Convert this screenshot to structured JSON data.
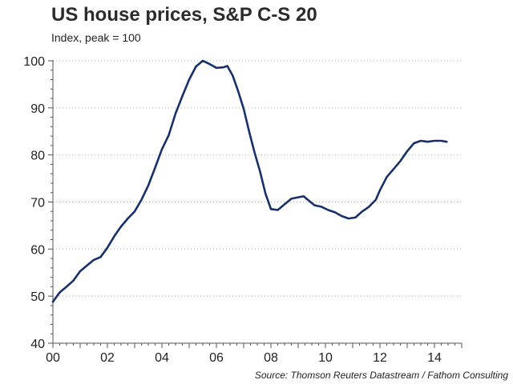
{
  "chart_data": {
    "type": "line",
    "title": "US house prices, S&P C-S 20",
    "subtitle": "Index, peak = 100",
    "source": "Source: Thomson Reuters Datastream / Fathom Consulting",
    "xlim": [
      2000,
      2015
    ],
    "ylim": [
      40,
      100
    ],
    "x_ticks": [
      {
        "value": 2000,
        "label": "00"
      },
      {
        "value": 2002,
        "label": "02"
      },
      {
        "value": 2004,
        "label": "04"
      },
      {
        "value": 2006,
        "label": "06"
      },
      {
        "value": 2008,
        "label": "08"
      },
      {
        "value": 2010,
        "label": "10"
      },
      {
        "value": 2012,
        "label": "12"
      },
      {
        "value": 2014,
        "label": "14"
      }
    ],
    "y_ticks": [
      100,
      90,
      80,
      70,
      60,
      50,
      40
    ],
    "grid": "horizontal",
    "legend": "none",
    "line_color": "#17306b",
    "series": [
      {
        "x": [
          2000.0,
          2000.25,
          2000.5,
          2000.75,
          2001.0,
          2001.25,
          2001.5,
          2001.75,
          2002.0,
          2002.25,
          2002.5,
          2002.75,
          2003.0,
          2003.25,
          2003.5,
          2003.75,
          2004.0,
          2004.25,
          2004.5,
          2004.75,
          2005.0,
          2005.25,
          2005.5,
          2005.75,
          2006.0,
          2006.25,
          2006.4,
          2006.6,
          2006.8,
          2007.0,
          2007.2,
          2007.4,
          2007.6,
          2007.8,
          2008.0,
          2008.25,
          2008.5,
          2008.75,
          2009.0,
          2009.2,
          2009.35,
          2009.6,
          2009.85,
          2010.1,
          2010.35,
          2010.6,
          2010.85,
          2011.1,
          2011.35,
          2011.6,
          2011.85,
          2012.0,
          2012.25,
          2012.5,
          2012.75,
          2013.0,
          2013.25,
          2013.5,
          2013.75,
          2014.0,
          2014.25,
          2014.45
        ],
        "values": [
          48.8,
          50.8,
          52.0,
          53.3,
          55.3,
          56.5,
          57.7,
          58.3,
          60.3,
          62.7,
          64.8,
          66.5,
          68.0,
          70.5,
          73.5,
          77.3,
          81.2,
          84.2,
          88.8,
          92.5,
          96.0,
          98.8,
          100.0,
          99.3,
          98.5,
          98.6,
          98.9,
          96.8,
          93.5,
          89.8,
          85.0,
          80.5,
          76.5,
          71.8,
          68.5,
          68.3,
          69.5,
          70.7,
          71.0,
          71.2,
          70.5,
          69.3,
          69.0,
          68.3,
          67.8,
          67.0,
          66.5,
          66.7,
          68.0,
          69.0,
          70.5,
          72.5,
          75.3,
          77.0,
          78.7,
          80.8,
          82.5,
          83.0,
          82.8,
          83.0,
          83.0,
          82.8
        ]
      }
    ]
  }
}
